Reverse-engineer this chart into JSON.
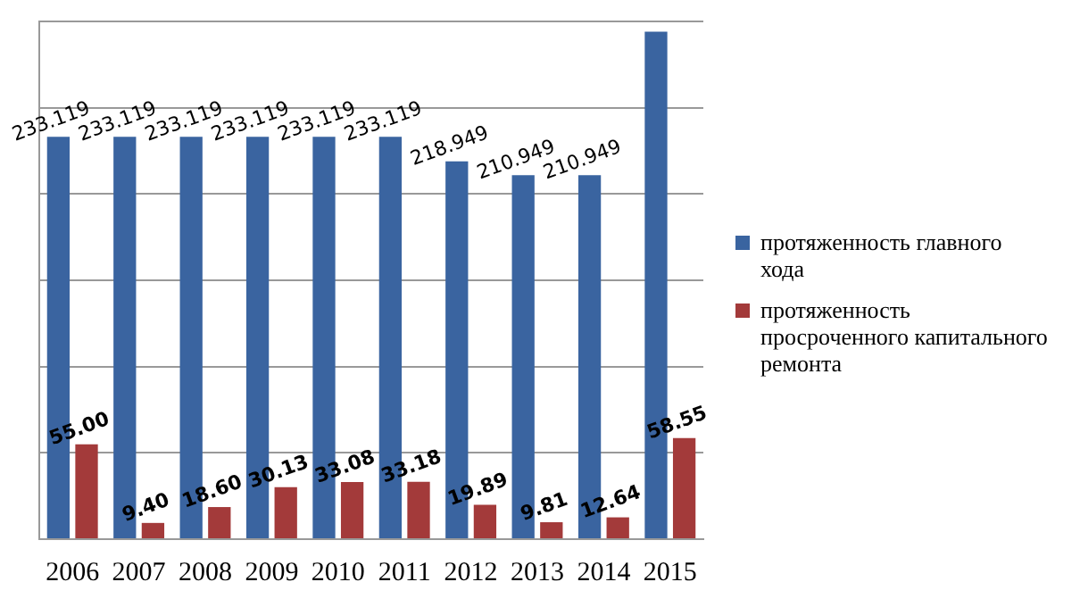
{
  "chart_data": {
    "type": "bar",
    "categories": [
      "2006",
      "2007",
      "2008",
      "2009",
      "2010",
      "2011",
      "2012",
      "2013",
      "2014",
      "2015"
    ],
    "series": [
      {
        "name": "протяженность главного хода",
        "color": "#3a64a0",
        "values": [
          233.119,
          233.119,
          233.119,
          233.119,
          233.119,
          233.119,
          218.949,
          210.949,
          210.949,
          294
        ],
        "value_labels": [
          "233.119",
          "233.119",
          "233.119",
          "233.119",
          "233.119",
          "233.119",
          "218.949",
          "210.949",
          "210.949",
          null
        ]
      },
      {
        "name": "протяженность просроченного капитального ремонта",
        "color": "#a33a3a",
        "values": [
          55.0,
          9.4,
          18.6,
          30.13,
          33.08,
          33.18,
          19.89,
          9.81,
          12.64,
          58.55
        ],
        "value_labels": [
          "55.00",
          "9.40",
          "18.60",
          "30.13",
          "33.08",
          "33.18",
          "19.89",
          "9.81",
          "12.64",
          "58.55"
        ]
      }
    ],
    "ylim": [
      0,
      300
    ],
    "yticks": [
      {
        "value": 0,
        "label": null
      },
      {
        "value": 50,
        "label": null
      },
      {
        "value": 100,
        "label": null
      },
      {
        "value": 150,
        "label": null
      },
      {
        "value": 200,
        "label": null
      },
      {
        "value": 250,
        "label": null
      },
      {
        "value": 300,
        "label": null
      }
    ],
    "tick_labels": "x",
    "grid": "y",
    "legend": "right"
  }
}
